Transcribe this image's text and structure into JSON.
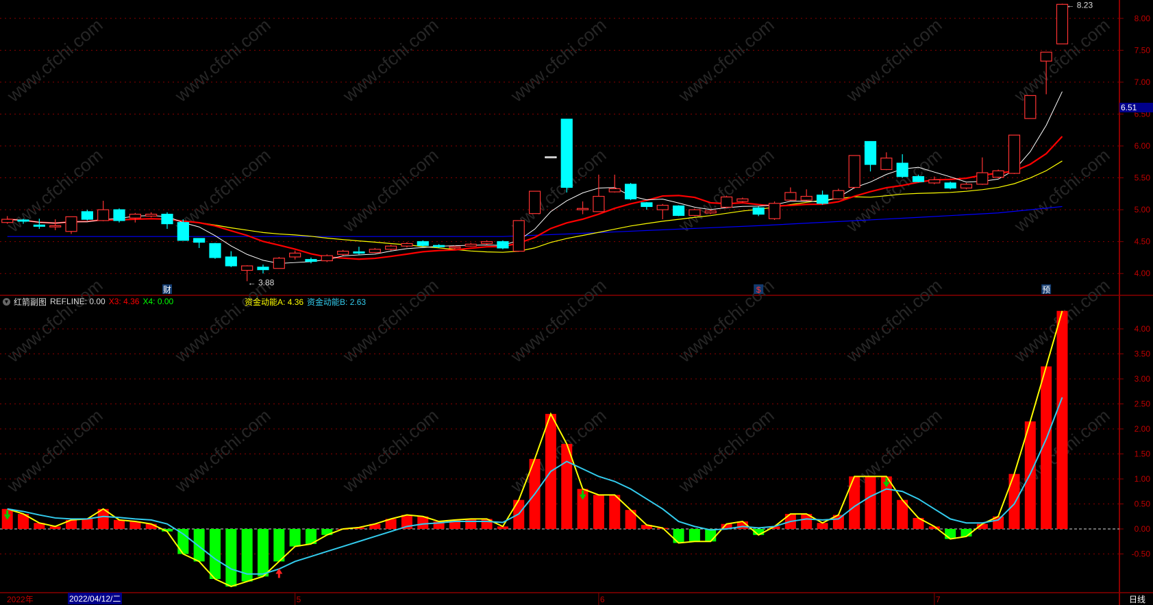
{
  "colors": {
    "up": "#ff3333",
    "down": "#00ffff",
    "ma5": "#ffffff",
    "ma10": "#ff0000",
    "ma20": "#ffff00",
    "ma60": "#0000ff",
    "grid": "#8b0000",
    "axis_text": "#c00000",
    "ind_pos": "#ff0000",
    "ind_neg": "#00ff00",
    "line_a": "#ffff00",
    "line_b": "#33ccee"
  },
  "watermark": "www.cfchi.com",
  "indicator": {
    "name": "红箭副图",
    "refline_label": "REFLINE:",
    "refline_value": "0.00",
    "x3_label": "X3:",
    "x3_value": "4.36",
    "x4_label": "X4:",
    "x4_value": "0.00",
    "a_label": "资金动能A:",
    "a_value": "4.36",
    "b_label": "资金动能B:",
    "b_value": "2.63"
  },
  "price_axis": {
    "ticks": [
      "8.00",
      "7.50",
      "7.00",
      "6.50",
      "6.00",
      "5.50",
      "5.00",
      "4.50",
      "4.00"
    ],
    "current": "6.51"
  },
  "indicator_axis": {
    "ticks": [
      "4.00",
      "3.50",
      "3.00",
      "2.50",
      "2.00",
      "1.50",
      "1.00",
      "0.50",
      "0.00",
      "-0.50"
    ]
  },
  "time_axis": {
    "year": "2022年",
    "cursor_date": "2022/04/12/二",
    "months": [
      {
        "label": "5",
        "index": 18
      },
      {
        "label": "6",
        "index": 37
      },
      {
        "label": "7",
        "index": 58
      }
    ],
    "period": "日线"
  },
  "annotations": {
    "low_label": "3.88",
    "low_index": 15,
    "high_label": "8.23",
    "high_index": 66,
    "markers": [
      {
        "text": "财",
        "index": 10
      },
      {
        "text": "$",
        "index": 47
      },
      {
        "text": "预",
        "index": 65
      }
    ]
  },
  "chart_data": {
    "type": "candlestick",
    "ylim": [
      3.75,
      8.3
    ],
    "candles": [
      [
        4.8,
        4.85,
        4.9,
        4.78
      ],
      [
        4.84,
        4.82,
        4.86,
        4.78
      ],
      [
        4.76,
        4.74,
        4.86,
        4.7
      ],
      [
        4.73,
        4.75,
        4.85,
        4.68
      ],
      [
        4.66,
        4.89,
        4.89,
        4.62
      ],
      [
        4.97,
        4.85,
        5.0,
        4.83
      ],
      [
        4.83,
        5.0,
        5.14,
        4.82
      ],
      [
        5.0,
        4.83,
        5.02,
        4.8
      ],
      [
        4.87,
        4.93,
        4.95,
        4.8
      ],
      [
        4.9,
        4.93,
        4.96,
        4.88
      ],
      [
        4.93,
        4.78,
        4.96,
        4.7
      ],
      [
        4.8,
        4.52,
        4.85,
        4.52
      ],
      [
        4.55,
        4.49,
        4.55,
        4.4
      ],
      [
        4.47,
        4.25,
        4.48,
        4.23
      ],
      [
        4.26,
        4.12,
        4.35,
        4.1
      ],
      [
        4.05,
        4.12,
        4.13,
        3.88
      ],
      [
        4.1,
        4.06,
        4.14,
        4.0
      ],
      [
        4.08,
        4.24,
        4.26,
        4.08
      ],
      [
        4.26,
        4.32,
        4.36,
        4.22
      ],
      [
        4.22,
        4.19,
        4.25,
        4.16
      ],
      [
        4.2,
        4.28,
        4.3,
        4.18
      ],
      [
        4.3,
        4.35,
        4.37,
        4.28
      ],
      [
        4.34,
        4.32,
        4.42,
        4.3
      ],
      [
        4.33,
        4.38,
        4.4,
        4.32
      ],
      [
        4.38,
        4.43,
        4.45,
        4.36
      ],
      [
        4.43,
        4.47,
        4.49,
        4.41
      ],
      [
        4.5,
        4.44,
        4.52,
        4.42
      ],
      [
        4.44,
        4.42,
        4.46,
        4.4
      ],
      [
        4.4,
        4.42,
        4.44,
        4.38
      ],
      [
        4.43,
        4.46,
        4.48,
        4.42
      ],
      [
        4.47,
        4.5,
        4.52,
        4.45
      ],
      [
        4.5,
        4.4,
        4.52,
        4.38
      ],
      [
        4.35,
        4.83,
        4.83,
        4.34
      ],
      [
        4.94,
        5.29,
        5.29,
        4.94
      ],
      [
        5.83,
        5.83,
        5.83,
        5.83
      ],
      [
        6.42,
        5.35,
        6.42,
        5.27
      ],
      [
        5.0,
        5.02,
        5.13,
        4.93
      ],
      [
        4.97,
        5.21,
        5.55,
        4.97
      ],
      [
        5.28,
        5.33,
        5.55,
        5.27
      ],
      [
        5.4,
        5.17,
        5.42,
        5.15
      ],
      [
        5.11,
        5.05,
        5.12,
        5.0
      ],
      [
        5.0,
        5.07,
        5.09,
        4.85
      ],
      [
        5.06,
        4.91,
        5.07,
        4.9
      ],
      [
        4.91,
        5.0,
        5.02,
        4.9
      ],
      [
        4.95,
        4.98,
        5.0,
        4.93
      ],
      [
        5.04,
        5.2,
        5.22,
        5.02
      ],
      [
        5.13,
        5.17,
        5.19,
        5.11
      ],
      [
        5.03,
        4.93,
        5.05,
        4.9
      ],
      [
        4.86,
        5.1,
        5.13,
        4.84
      ],
      [
        5.15,
        5.27,
        5.35,
        5.14
      ],
      [
        5.15,
        5.21,
        5.32,
        5.14
      ],
      [
        5.23,
        5.1,
        5.3,
        5.08
      ],
      [
        5.17,
        5.3,
        5.33,
        5.16
      ],
      [
        5.35,
        5.85,
        5.85,
        5.33
      ],
      [
        6.07,
        5.71,
        6.07,
        5.6
      ],
      [
        5.63,
        5.81,
        5.9,
        5.62
      ],
      [
        5.73,
        5.52,
        5.87,
        5.5
      ],
      [
        5.52,
        5.44,
        5.55,
        5.43
      ],
      [
        5.42,
        5.47,
        5.52,
        5.4
      ],
      [
        5.42,
        5.34,
        5.44,
        5.32
      ],
      [
        5.34,
        5.4,
        5.42,
        5.32
      ],
      [
        5.4,
        5.58,
        5.82,
        5.39
      ],
      [
        5.51,
        5.61,
        5.63,
        5.5
      ],
      [
        5.57,
        6.17,
        6.17,
        5.56
      ],
      [
        6.43,
        6.79,
        6.79,
        6.43
      ],
      [
        7.33,
        7.47,
        7.47,
        6.81
      ],
      [
        7.6,
        8.22,
        8.23,
        7.6
      ]
    ],
    "ma60": [
      [
        0,
        4.58
      ],
      [
        31,
        4.58
      ],
      [
        35,
        4.62
      ],
      [
        47,
        4.75
      ],
      [
        57,
        4.88
      ],
      [
        62,
        4.95
      ],
      [
        66,
        5.05
      ]
    ],
    "indicator": {
      "ylim": [
        -0.75,
        4.45
      ],
      "bars": [
        0.4,
        0.3,
        0.12,
        0.05,
        0.18,
        0.2,
        0.4,
        0.18,
        0.15,
        0.1,
        -0.05,
        -0.5,
        -0.65,
        -1.0,
        -1.15,
        -1.05,
        -0.95,
        -0.65,
        -0.35,
        -0.3,
        -0.12,
        0.0,
        0.03,
        0.1,
        0.2,
        0.28,
        0.25,
        0.15,
        0.18,
        0.2,
        0.2,
        0.05,
        0.58,
        1.4,
        2.3,
        1.7,
        0.8,
        0.68,
        0.68,
        0.38,
        0.08,
        0.02,
        -0.28,
        -0.25,
        -0.25,
        0.1,
        0.15,
        -0.12,
        0.05,
        0.3,
        0.3,
        0.12,
        0.28,
        1.05,
        1.05,
        1.05,
        0.58,
        0.22,
        0.05,
        -0.2,
        -0.15,
        0.1,
        0.25,
        1.1,
        2.15,
        3.25,
        4.36
      ],
      "line_b": [
        0.4,
        0.35,
        0.28,
        0.22,
        0.2,
        0.2,
        0.25,
        0.23,
        0.2,
        0.18,
        0.1,
        -0.1,
        -0.35,
        -0.6,
        -0.8,
        -0.9,
        -0.9,
        -0.8,
        -0.65,
        -0.55,
        -0.45,
        -0.35,
        -0.25,
        -0.15,
        -0.05,
        0.05,
        0.1,
        0.12,
        0.15,
        0.15,
        0.15,
        0.13,
        0.3,
        0.7,
        1.15,
        1.35,
        1.2,
        1.05,
        0.95,
        0.8,
        0.6,
        0.4,
        0.15,
        0.05,
        -0.02,
        0.0,
        0.05,
        0.02,
        0.05,
        0.15,
        0.2,
        0.18,
        0.2,
        0.45,
        0.65,
        0.8,
        0.75,
        0.6,
        0.4,
        0.2,
        0.12,
        0.12,
        0.18,
        0.5,
        1.1,
        1.8,
        2.63
      ],
      "down_arrows": [
        0,
        36,
        55
      ],
      "up_arrows": [
        17
      ]
    }
  }
}
